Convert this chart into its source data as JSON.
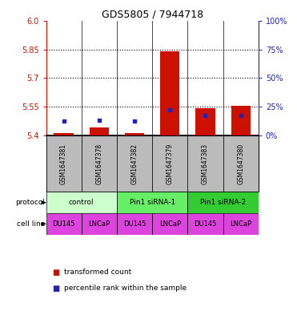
{
  "title": "GDS5805 / 7944718",
  "samples": [
    "GSM1647381",
    "GSM1647378",
    "GSM1647382",
    "GSM1647379",
    "GSM1647383",
    "GSM1647380"
  ],
  "red_bar_tops": [
    5.415,
    5.445,
    5.415,
    5.84,
    5.545,
    5.555
  ],
  "blue_dot_pos": [
    5.475,
    5.48,
    5.475,
    5.535,
    5.505,
    5.505
  ],
  "y_min": 5.4,
  "y_max": 6.0,
  "y_left_ticks": [
    5.4,
    5.55,
    5.7,
    5.85,
    6.0
  ],
  "y_right_labels": [
    "0%",
    "25%",
    "50%",
    "75%",
    "100%"
  ],
  "protocols": [
    {
      "label": "control",
      "start": 0,
      "end": 2,
      "color": "#ccffcc"
    },
    {
      "label": "Pin1 siRNA-1",
      "start": 2,
      "end": 4,
      "color": "#66ee66"
    },
    {
      "label": "Pin1 siRNA-2",
      "start": 4,
      "end": 6,
      "color": "#33cc33"
    }
  ],
  "cell_lines": [
    "DU145",
    "LNCaP",
    "DU145",
    "LNCaP",
    "DU145",
    "LNCaP"
  ],
  "cell_line_bg": "#dd44dd",
  "bar_color": "#cc1100",
  "dot_color": "#2222bb",
  "sample_bg": "#bbbbbb",
  "left_axis_color": "#cc1100",
  "right_axis_color": "#2222bb",
  "legend_bar_label": "transformed count",
  "legend_dot_label": "percentile rank within the sample"
}
